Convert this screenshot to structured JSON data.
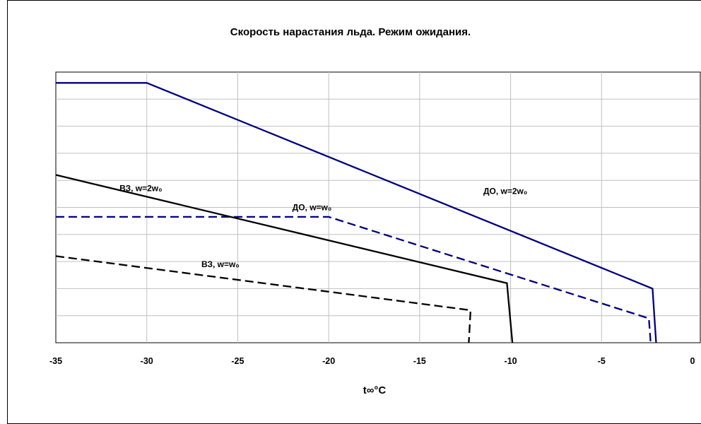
{
  "chart_data": {
    "type": "line",
    "title": "Скорость нарастания льда. Режим ожидания.",
    "xlabel": "t∞°C",
    "ylabel": "",
    "xlim": [
      -35,
      0
    ],
    "ylim": [
      0,
      10
    ],
    "x_ticks": [
      "-35",
      "-30",
      "-25",
      "-20",
      "-15",
      "-10",
      "-5",
      "0"
    ],
    "grid": true,
    "series": [
      {
        "name": "ДО, w=2w₀",
        "color": "#000080",
        "dash": "solid",
        "points": [
          [
            -35,
            9.6
          ],
          [
            -30,
            9.6
          ],
          [
            -2.2,
            2.0
          ],
          [
            -2.0,
            0
          ]
        ]
      },
      {
        "name": "ДО, w=w₀",
        "color": "#000080",
        "dash": "dashed",
        "points": [
          [
            -35,
            4.65
          ],
          [
            -20,
            4.65
          ],
          [
            -2.4,
            0.9
          ],
          [
            -2.3,
            0
          ]
        ]
      },
      {
        "name": "ВЗ, w=2w₀",
        "color": "#000000",
        "dash": "solid",
        "points": [
          [
            -35,
            6.2
          ],
          [
            -10.2,
            2.2
          ],
          [
            -9.9,
            0
          ]
        ]
      },
      {
        "name": "ВЗ, w=w₀",
        "color": "#000000",
        "dash": "dashed",
        "points": [
          [
            -35,
            3.2
          ],
          [
            -12.2,
            1.2
          ],
          [
            -12.3,
            0
          ]
        ]
      }
    ],
    "annotations": [
      {
        "text": "ДО, w=2w₀",
        "x": -11.5,
        "y": 5.5
      },
      {
        "text": "ДО, w=w₀",
        "x": -22.0,
        "y": 4.9
      },
      {
        "text": "ВЗ, w=2w₀",
        "x": -31.5,
        "y": 5.6
      },
      {
        "text": "ВЗ, w=w₀",
        "x": -27.0,
        "y": 2.8
      }
    ]
  }
}
